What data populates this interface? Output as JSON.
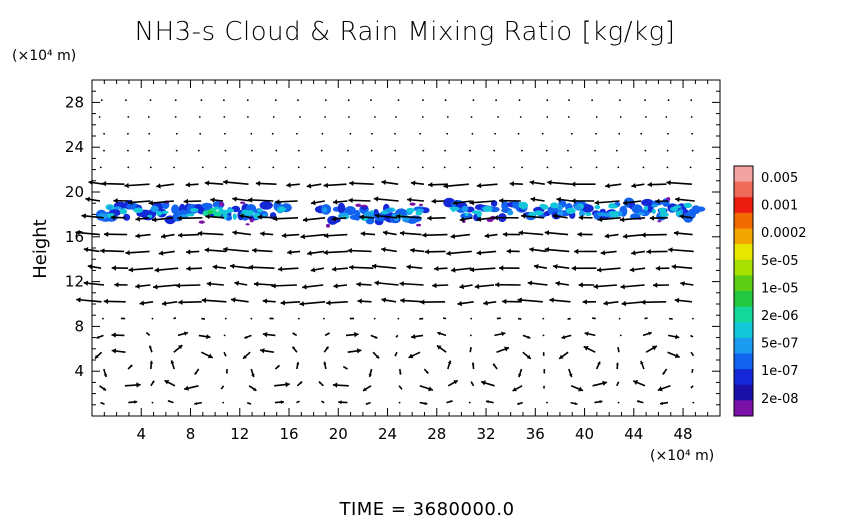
{
  "chart_data": {
    "type": "heatmap",
    "title": "NH3-s Cloud & Rain Mixing Ratio [kg/kg]",
    "xlabel": "",
    "ylabel": "Height",
    "x_unit": "(×10⁴ m)",
    "y_unit": "(×10⁴ m)",
    "xlim": [
      0,
      51
    ],
    "ylim": [
      0,
      30
    ],
    "x_ticks": [
      4,
      8,
      12,
      16,
      20,
      24,
      28,
      32,
      36,
      40,
      44,
      48
    ],
    "y_ticks": [
      4,
      8,
      12,
      16,
      20,
      24,
      28
    ],
    "time_label": "TIME = 3680000.0",
    "colorbar": {
      "labels": [
        "0.005",
        "0.001",
        "0.0002",
        "5e-05",
        "1e-05",
        "2e-06",
        "5e-07",
        "1e-07",
        "2e-08"
      ],
      "colors": [
        "#f4a3a3",
        "#f06a5a",
        "#ea1d10",
        "#f06a00",
        "#f2a600",
        "#e6e600",
        "#a8e000",
        "#5ccf14",
        "#22c940",
        "#14d89a",
        "#12c8d8",
        "#1a9cf0",
        "#1264f0",
        "#1428d8",
        "#1a10a8",
        "#7a12a8"
      ]
    },
    "cloud_layer": {
      "y_range": [
        17,
        19.5
      ],
      "segments": [
        {
          "x_start": 0.5,
          "x_end": 16,
          "y_center": 18.2,
          "peak_level": "2e-06"
        },
        {
          "x_start": 18.5,
          "x_end": 27,
          "y_center": 18.0,
          "peak_level": "1e-07"
        },
        {
          "x_start": 29,
          "x_end": 49.5,
          "y_center": 18.4,
          "peak_level": "5e-07"
        }
      ]
    },
    "wind_field": {
      "description_text": "",
      "grid_dx": 2,
      "grid_dy": 1.5
    }
  }
}
